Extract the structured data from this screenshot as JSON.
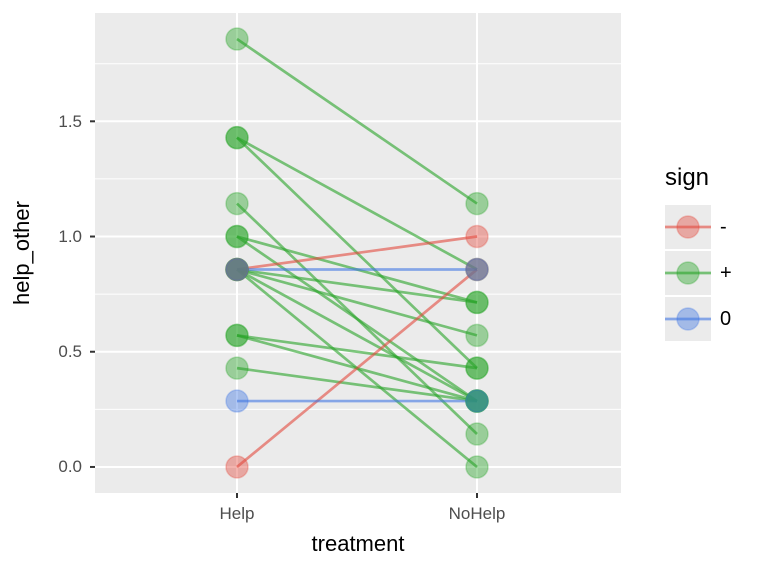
{
  "figure": {
    "background": "#ffffff",
    "panel_bg": "#ebebeb",
    "grid_color": "#ffffff",
    "tick_mark_color": "#333333",
    "tick_label_color": "#4d4d4d",
    "text_color": "#000000"
  },
  "chart_data": {
    "type": "line",
    "subtype": "paired-slope-chart",
    "title": "",
    "xlabel": "treatment",
    "ylabel": "help_other",
    "categories": [
      "Help",
      "NoHelp"
    ],
    "y_ticks": [
      0.0,
      0.5,
      1.0,
      1.5
    ],
    "y_tick_labels": [
      "0.0",
      "0.5",
      "1.0",
      "1.5"
    ],
    "y_minor_ticks": [
      0.25,
      0.75,
      1.25,
      1.75
    ],
    "ylim": [
      -0.113,
      1.97
    ],
    "grid": true,
    "legend": {
      "title": "sign",
      "position": "right",
      "entries": [
        {
          "label": "-",
          "sign": "-"
        },
        {
          "label": "+",
          "sign": "+"
        },
        {
          "label": "0",
          "sign": "0"
        }
      ]
    },
    "sign_colors": {
      "-": "#e3493d",
      "+": "#28a428",
      "0": "#4176e3"
    },
    "style": {
      "line_opacity": 0.6,
      "point_opacity": 0.42,
      "point_radius": 11,
      "line_width": 2.7
    },
    "pairs": [
      {
        "help": 1.857,
        "nohelp": 1.143,
        "sign": "+"
      },
      {
        "help": 1.429,
        "nohelp": 0.857,
        "sign": "+"
      },
      {
        "help": 1.429,
        "nohelp": 0.429,
        "sign": "+"
      },
      {
        "help": 1.143,
        "nohelp": 0.143,
        "sign": "+"
      },
      {
        "help": 1.0,
        "nohelp": 0.714,
        "sign": "+"
      },
      {
        "help": 1.0,
        "nohelp": 0.286,
        "sign": "+"
      },
      {
        "help": 0.857,
        "nohelp": 0.714,
        "sign": "+"
      },
      {
        "help": 0.857,
        "nohelp": 0.571,
        "sign": "+"
      },
      {
        "help": 0.857,
        "nohelp": 0.286,
        "sign": "+"
      },
      {
        "help": 0.857,
        "nohelp": 0.0,
        "sign": "+"
      },
      {
        "help": 0.571,
        "nohelp": 0.429,
        "sign": "+"
      },
      {
        "help": 0.571,
        "nohelp": 0.286,
        "sign": "+"
      },
      {
        "help": 0.429,
        "nohelp": 0.286,
        "sign": "+"
      },
      {
        "help": 0.857,
        "nohelp": 1.0,
        "sign": "-"
      },
      {
        "help": 0.0,
        "nohelp": 0.857,
        "sign": "-"
      },
      {
        "help": 0.857,
        "nohelp": 0.857,
        "sign": "0"
      },
      {
        "help": 0.286,
        "nohelp": 0.286,
        "sign": "0"
      }
    ]
  }
}
